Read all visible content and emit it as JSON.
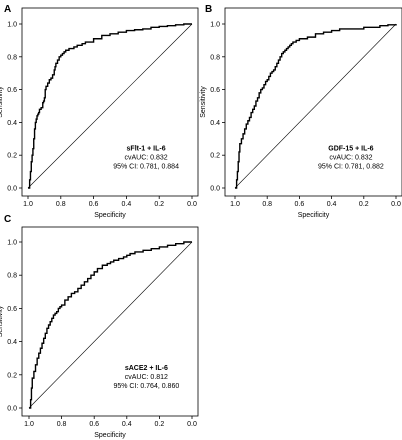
{
  "chart_data": [
    {
      "type": "line",
      "panel": "A",
      "xlabel": "Specificity",
      "ylabel": "Sensitivity",
      "xlim": [
        1.0,
        0.0
      ],
      "ylim": [
        0.0,
        1.0
      ],
      "x_ticks": [
        "1.0",
        "0.8",
        "0.6",
        "0.4",
        "0.2",
        "0.0"
      ],
      "y_ticks": [
        "0.0",
        "0.2",
        "0.4",
        "0.6",
        "0.8",
        "1.0"
      ],
      "reference_line": [
        [
          1.0,
          0.0
        ],
        [
          0.0,
          1.0
        ]
      ],
      "annotation": {
        "title": "sFlt-1 + IL-6",
        "line1": "cvAUC: 0.832",
        "line2": "95% CI: 0.781, 0.884"
      },
      "series": [
        {
          "specificity": [
            1.0,
            0.99,
            0.985,
            0.98,
            0.975,
            0.97,
            0.965,
            0.96,
            0.955,
            0.95,
            0.945,
            0.94,
            0.935,
            0.93,
            0.92,
            0.91,
            0.905,
            0.9,
            0.895,
            0.89,
            0.88,
            0.87,
            0.86,
            0.85,
            0.84,
            0.835,
            0.83,
            0.82,
            0.81,
            0.8,
            0.79,
            0.78,
            0.77,
            0.75,
            0.72,
            0.7,
            0.67,
            0.65,
            0.6,
            0.55,
            0.5,
            0.45,
            0.4,
            0.35,
            0.3,
            0.25,
            0.2,
            0.15,
            0.1,
            0.05,
            0.0
          ],
          "sensitivity": [
            0.0,
            0.05,
            0.1,
            0.16,
            0.2,
            0.24,
            0.3,
            0.36,
            0.4,
            0.42,
            0.44,
            0.45,
            0.46,
            0.48,
            0.49,
            0.52,
            0.53,
            0.55,
            0.6,
            0.62,
            0.64,
            0.66,
            0.67,
            0.69,
            0.72,
            0.74,
            0.76,
            0.78,
            0.8,
            0.81,
            0.82,
            0.83,
            0.84,
            0.85,
            0.86,
            0.87,
            0.88,
            0.89,
            0.91,
            0.93,
            0.94,
            0.95,
            0.96,
            0.965,
            0.97,
            0.98,
            0.985,
            0.99,
            0.995,
            1.0,
            1.0
          ]
        }
      ]
    },
    {
      "type": "line",
      "panel": "B",
      "xlabel": "Specificity",
      "ylabel": "Sensitivity",
      "xlim": [
        1.0,
        0.0
      ],
      "ylim": [
        0.0,
        1.0
      ],
      "x_ticks": [
        "1.0",
        "0.8",
        "0.6",
        "0.4",
        "0.2",
        "0.0"
      ],
      "y_ticks": [
        "0.0",
        "0.2",
        "0.4",
        "0.6",
        "0.8",
        "1.0"
      ],
      "reference_line": [
        [
          1.0,
          0.0
        ],
        [
          0.0,
          1.0
        ]
      ],
      "annotation": {
        "title": "GDF-15 + IL-6",
        "line1": "cvAUC: 0.832",
        "line2": "95% CI: 0.781, 0.882"
      },
      "series": [
        {
          "specificity": [
            1.0,
            0.99,
            0.985,
            0.98,
            0.975,
            0.97,
            0.96,
            0.95,
            0.94,
            0.93,
            0.92,
            0.91,
            0.9,
            0.89,
            0.88,
            0.87,
            0.86,
            0.85,
            0.84,
            0.83,
            0.82,
            0.81,
            0.8,
            0.79,
            0.78,
            0.77,
            0.76,
            0.75,
            0.74,
            0.73,
            0.72,
            0.71,
            0.7,
            0.69,
            0.68,
            0.67,
            0.66,
            0.65,
            0.64,
            0.62,
            0.6,
            0.55,
            0.5,
            0.45,
            0.4,
            0.35,
            0.3,
            0.2,
            0.1,
            0.05,
            0.0
          ],
          "sensitivity": [
            0.0,
            0.05,
            0.1,
            0.16,
            0.22,
            0.27,
            0.3,
            0.33,
            0.36,
            0.39,
            0.41,
            0.43,
            0.46,
            0.48,
            0.5,
            0.53,
            0.55,
            0.58,
            0.6,
            0.61,
            0.63,
            0.65,
            0.66,
            0.68,
            0.7,
            0.71,
            0.72,
            0.74,
            0.76,
            0.78,
            0.8,
            0.82,
            0.83,
            0.84,
            0.85,
            0.86,
            0.87,
            0.88,
            0.89,
            0.9,
            0.91,
            0.92,
            0.94,
            0.95,
            0.96,
            0.97,
            0.97,
            0.98,
            0.99,
            0.995,
            1.0
          ]
        }
      ]
    },
    {
      "type": "line",
      "panel": "C",
      "xlabel": "Specificity",
      "ylabel": "Sensitivity",
      "xlim": [
        1.0,
        0.0
      ],
      "ylim": [
        0.0,
        1.0
      ],
      "x_ticks": [
        "1.0",
        "0.8",
        "0.6",
        "0.4",
        "0.2",
        "0.0"
      ],
      "y_ticks": [
        "0.0",
        "0.2",
        "0.4",
        "0.6",
        "0.8",
        "1.0"
      ],
      "reference_line": [
        [
          1.0,
          0.0
        ],
        [
          0.0,
          1.0
        ]
      ],
      "annotation": {
        "title": "sACE2 + IL-6",
        "line1": "cvAUC: 0.812",
        "line2": "95% CI: 0.764, 0.860"
      },
      "series": [
        {
          "specificity": [
            1.0,
            0.99,
            0.985,
            0.98,
            0.97,
            0.96,
            0.95,
            0.94,
            0.93,
            0.92,
            0.91,
            0.9,
            0.89,
            0.88,
            0.87,
            0.86,
            0.85,
            0.84,
            0.83,
            0.82,
            0.81,
            0.8,
            0.78,
            0.76,
            0.74,
            0.72,
            0.7,
            0.68,
            0.66,
            0.64,
            0.62,
            0.6,
            0.58,
            0.55,
            0.52,
            0.5,
            0.48,
            0.45,
            0.42,
            0.4,
            0.38,
            0.35,
            0.3,
            0.25,
            0.2,
            0.15,
            0.1,
            0.05,
            0.0
          ],
          "sensitivity": [
            0.0,
            0.05,
            0.12,
            0.18,
            0.22,
            0.26,
            0.3,
            0.33,
            0.36,
            0.39,
            0.42,
            0.45,
            0.48,
            0.5,
            0.52,
            0.54,
            0.56,
            0.57,
            0.58,
            0.6,
            0.61,
            0.62,
            0.65,
            0.67,
            0.69,
            0.7,
            0.72,
            0.74,
            0.76,
            0.78,
            0.8,
            0.82,
            0.84,
            0.86,
            0.87,
            0.88,
            0.89,
            0.9,
            0.91,
            0.92,
            0.93,
            0.94,
            0.95,
            0.96,
            0.97,
            0.98,
            0.99,
            1.0,
            1.0
          ]
        }
      ]
    }
  ]
}
